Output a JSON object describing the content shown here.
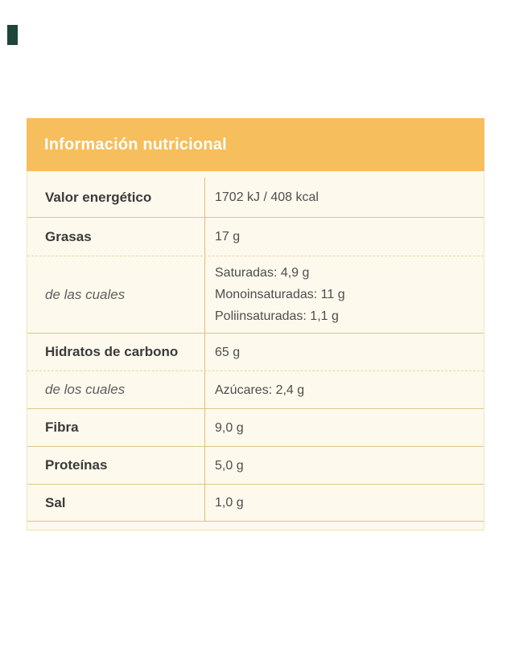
{
  "page": {
    "background": "#ffffff"
  },
  "corner_mark": {
    "color": "#1e463b"
  },
  "colors": {
    "header_bg": "#F6BE5C",
    "header_text": "#FEFEFE",
    "body_bg": "#FDF9ED",
    "solid_separator": "#DCC785",
    "dashed_separator": "#EBD49E",
    "column_divider": "#E8BC6A",
    "label_text": "#3B3B3B",
    "value_text": "#4D4D4D",
    "sub_label_text": "#5E5E5E"
  },
  "table": {
    "title": "Información nutricional",
    "rows": [
      {
        "label": "Valor energético",
        "style": "bold",
        "separator": "solid",
        "values": [
          "1702 kJ / 408 kcal"
        ]
      },
      {
        "label": "Grasas",
        "style": "bold",
        "separator": "dashed",
        "values": [
          "17 g"
        ]
      },
      {
        "label": "de las cuales",
        "style": "italic",
        "separator": "solid",
        "values": [
          "Saturadas: 4,9 g",
          "Monoinsaturadas: 11 g",
          "Poliinsaturadas: 1,1 g"
        ]
      },
      {
        "label": "Hidratos de carbono",
        "style": "bold",
        "separator": "dashed",
        "values": [
          "65 g"
        ]
      },
      {
        "label": "de los cuales",
        "style": "italic",
        "separator": "solid",
        "values": [
          "Azúcares: 2,4 g"
        ]
      },
      {
        "label": "Fibra",
        "style": "bold",
        "separator": "solid",
        "values": [
          "9,0 g"
        ]
      },
      {
        "label": "Proteínas",
        "style": "bold",
        "separator": "solid",
        "values": [
          "5,0 g"
        ]
      },
      {
        "label": "Sal",
        "style": "bold",
        "separator": "solid",
        "values": [
          "1,0 g"
        ]
      }
    ]
  }
}
